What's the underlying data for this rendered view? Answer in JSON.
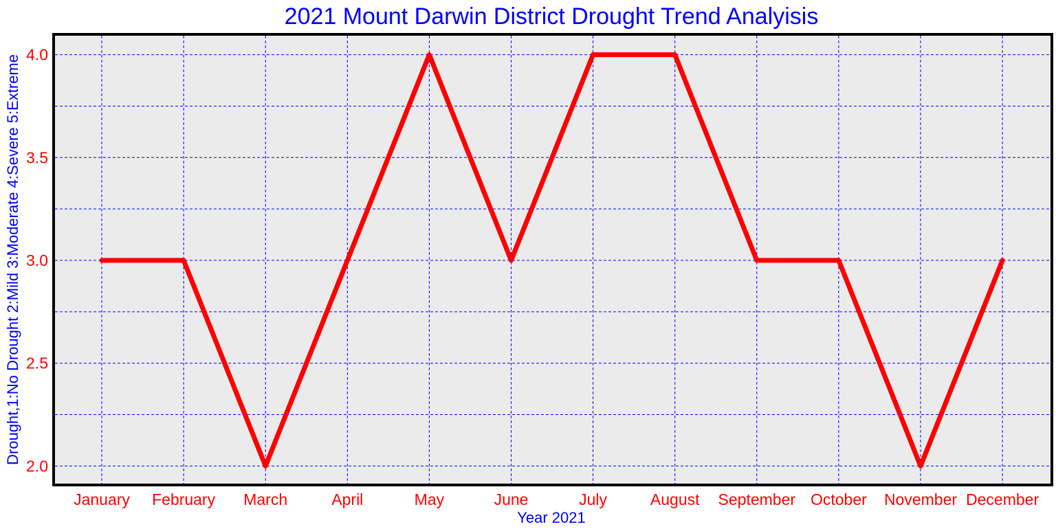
{
  "colors": {
    "title": "#0000ff",
    "axis_label": "#0000ff",
    "tick_label": "#ff0000",
    "line": "#ff0000",
    "grid": "#0000ff",
    "plot_background": "#ebebeb",
    "frame": "#000000"
  },
  "chart_data": {
    "type": "line",
    "title": "2021 Mount Darwin District Drought Trend Analyisis",
    "xlabel": "Year 2021",
    "ylabel": "Drought,1:No Drought 2:Mild 3:Moderate 4:Severe 5:Extreme",
    "categories": [
      "January",
      "February",
      "March",
      "April",
      "May",
      "June",
      "July",
      "August",
      "September",
      "October",
      "November",
      "December"
    ],
    "series": [
      {
        "values": [
          3,
          3,
          2,
          3,
          4,
          3,
          4,
          4,
          3,
          3,
          2,
          3
        ]
      }
    ],
    "yticks": [
      "2.0",
      "2.5",
      "3.0",
      "3.5",
      "4.0"
    ],
    "ylim": [
      1.9,
      4.1
    ],
    "grid": true,
    "grid_style": "dashed"
  }
}
